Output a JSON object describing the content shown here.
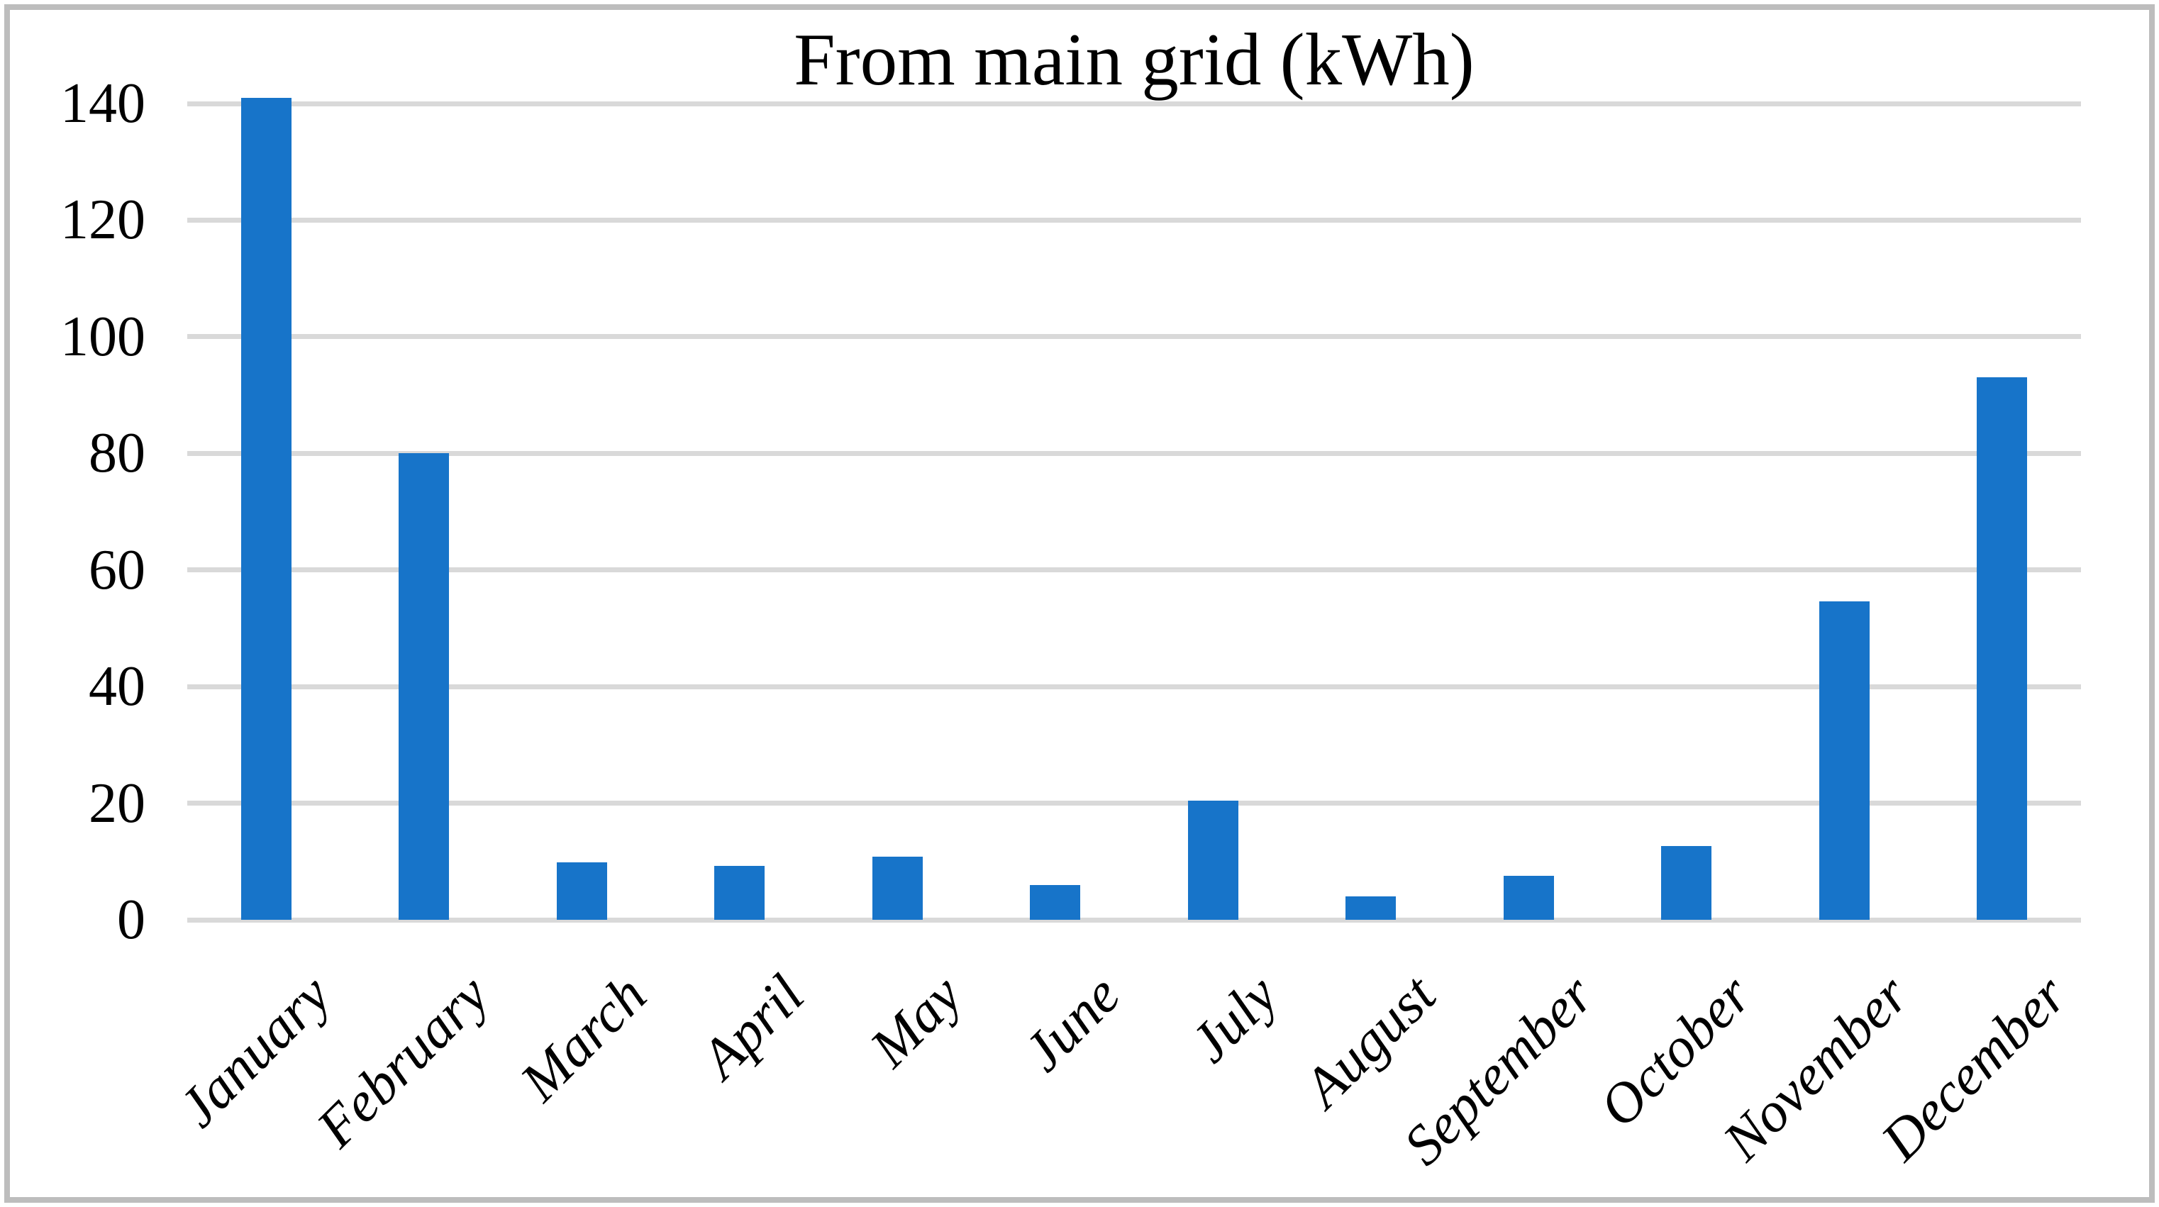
{
  "chart_data": {
    "type": "bar",
    "title": "From main grid (kWh)",
    "categories": [
      "January",
      "February",
      "March",
      "April",
      "May",
      "June",
      "July",
      "August",
      "September",
      "October",
      "November",
      "December"
    ],
    "values": [
      141,
      80,
      9.8,
      9.3,
      10.8,
      5.9,
      20.4,
      4,
      7.5,
      12.6,
      54.6,
      93
    ],
    "xlabel": "",
    "ylabel": "",
    "ylim": [
      0,
      140
    ],
    "yticks": [
      0,
      20,
      40,
      60,
      80,
      100,
      120,
      140
    ],
    "grid": true,
    "legend_position": "none",
    "bar_color": "#1774c9",
    "gridline_color": "#d9d9d9",
    "frame_border_color": "#bdbdbd",
    "tick_label_style": "italic"
  }
}
